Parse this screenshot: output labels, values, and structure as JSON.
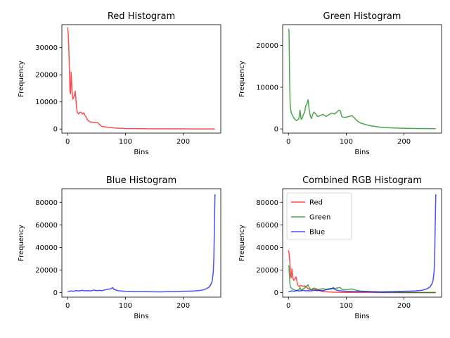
{
  "chart_data": [
    {
      "type": "line",
      "title": "Red Histogram",
      "xlabel": "Bins",
      "ylabel": "Frequency",
      "xlim": [
        -10,
        265
      ],
      "ylim": [
        -1500,
        38500
      ],
      "xticks": [
        0,
        100,
        200
      ],
      "yticks": [
        0,
        10000,
        20000,
        30000
      ],
      "xtick_labels": [
        "0",
        "100",
        "200"
      ],
      "ytick_labels": [
        "0",
        "10000",
        "20000",
        "30000"
      ],
      "grid": false,
      "series": [
        {
          "color": "#ff0000",
          "x": [
            0,
            1,
            2,
            3,
            4,
            5,
            6,
            7,
            8,
            9,
            10,
            11,
            12,
            13,
            14,
            15,
            16,
            17,
            18,
            19,
            20,
            22,
            24,
            26,
            28,
            30,
            32,
            34,
            36,
            38,
            40,
            44,
            48,
            52,
            56,
            58,
            60,
            65,
            70,
            80,
            90,
            100,
            120,
            140,
            160,
            180,
            200,
            220,
            240,
            255
          ],
          "y": [
            37500,
            35000,
            30000,
            22000,
            14000,
            13000,
            21000,
            17000,
            12500,
            11000,
            11500,
            12000,
            12500,
            14000,
            12000,
            9000,
            7000,
            6000,
            6000,
            5500,
            6000,
            6200,
            6000,
            5500,
            6000,
            5000,
            4500,
            3500,
            3000,
            2800,
            2600,
            2500,
            2400,
            2300,
            1500,
            1200,
            900,
            800,
            600,
            400,
            300,
            200,
            150,
            100,
            80,
            60,
            50,
            40,
            40,
            30
          ]
        }
      ]
    },
    {
      "type": "line",
      "title": "Green Histogram",
      "xlabel": "Bins",
      "ylabel": "Frequency",
      "xlim": [
        -10,
        265
      ],
      "ylim": [
        -1000,
        25000
      ],
      "xticks": [
        0,
        100,
        200
      ],
      "yticks": [
        0,
        10000,
        20000
      ],
      "xtick_labels": [
        "0",
        "100",
        "200"
      ],
      "ytick_labels": [
        "0",
        "10000",
        "20000"
      ],
      "grid": false,
      "series": [
        {
          "color": "#008000",
          "x": [
            0,
            1,
            2,
            3,
            4,
            5,
            6,
            8,
            10,
            12,
            14,
            16,
            18,
            20,
            22,
            24,
            26,
            28,
            30,
            32,
            34,
            36,
            38,
            40,
            42,
            44,
            46,
            48,
            50,
            55,
            60,
            65,
            70,
            75,
            80,
            85,
            88,
            90,
            92,
            95,
            100,
            105,
            110,
            115,
            120,
            125,
            130,
            140,
            150,
            160,
            180,
            200,
            220,
            240,
            255
          ],
          "y": [
            24000,
            23500,
            12000,
            6000,
            4500,
            3800,
            3500,
            3000,
            2500,
            2200,
            2000,
            2200,
            2400,
            4500,
            2300,
            2600,
            3500,
            4000,
            5500,
            6000,
            7000,
            4500,
            3000,
            2500,
            3500,
            4000,
            3800,
            3500,
            3000,
            3200,
            3500,
            3000,
            3400,
            3800,
            3600,
            4200,
            4500,
            4300,
            3000,
            2800,
            2800,
            3000,
            3200,
            2500,
            1800,
            1400,
            1200,
            800,
            600,
            400,
            250,
            150,
            100,
            80,
            60
          ]
        }
      ]
    },
    {
      "type": "line",
      "title": "Blue Histogram",
      "xlabel": "Bins",
      "ylabel": "Frequency",
      "xlim": [
        -10,
        265
      ],
      "ylim": [
        -4000,
        92000
      ],
      "xticks": [
        0,
        100,
        200
      ],
      "yticks": [
        0,
        20000,
        40000,
        60000,
        80000
      ],
      "xtick_labels": [
        "0",
        "100",
        "200"
      ],
      "ytick_labels": [
        "0",
        "20000",
        "40000",
        "60000",
        "80000"
      ],
      "grid": false,
      "series": [
        {
          "color": "#0000ff",
          "x": [
            0,
            5,
            10,
            15,
            20,
            25,
            30,
            35,
            40,
            45,
            50,
            55,
            60,
            65,
            70,
            75,
            78,
            80,
            85,
            90,
            100,
            120,
            140,
            160,
            180,
            200,
            210,
            220,
            230,
            235,
            240,
            245,
            248,
            250,
            252,
            253,
            254,
            255
          ],
          "y": [
            800,
            1500,
            1200,
            1800,
            1500,
            2000,
            1600,
            1800,
            1500,
            2200,
            1800,
            2000,
            1800,
            2500,
            3000,
            3500,
            4500,
            3000,
            2000,
            1500,
            1200,
            1000,
            800,
            700,
            900,
            1200,
            1300,
            1500,
            2000,
            2500,
            3500,
            5000,
            7500,
            10000,
            18000,
            30000,
            60000,
            87000
          ]
        }
      ]
    },
    {
      "type": "line",
      "title": "Combined RGB Histogram",
      "xlabel": "Bins",
      "ylabel": "Frequency",
      "xlim": [
        -10,
        265
      ],
      "ylim": [
        -4000,
        92000
      ],
      "xticks": [
        0,
        100,
        200
      ],
      "yticks": [
        0,
        20000,
        40000,
        60000,
        80000
      ],
      "xtick_labels": [
        "0",
        "100",
        "200"
      ],
      "ytick_labels": [
        "0",
        "20000",
        "40000",
        "60000",
        "80000"
      ],
      "grid": false,
      "legend": "upper-left",
      "series": [
        {
          "name": "Red",
          "color": "#ff0000",
          "x": [
            0,
            1,
            2,
            3,
            4,
            5,
            6,
            7,
            8,
            9,
            10,
            11,
            12,
            13,
            14,
            15,
            16,
            17,
            18,
            19,
            20,
            22,
            24,
            26,
            28,
            30,
            32,
            34,
            36,
            38,
            40,
            44,
            48,
            52,
            56,
            58,
            60,
            65,
            70,
            80,
            90,
            100,
            120,
            140,
            160,
            180,
            200,
            220,
            240,
            255
          ],
          "y": [
            37500,
            35000,
            30000,
            22000,
            14000,
            13000,
            21000,
            17000,
            12500,
            11000,
            11500,
            12000,
            12500,
            14000,
            12000,
            9000,
            7000,
            6000,
            6000,
            5500,
            6000,
            6200,
            6000,
            5500,
            6000,
            5000,
            4500,
            3500,
            3000,
            2800,
            2600,
            2500,
            2400,
            2300,
            1500,
            1200,
            900,
            800,
            600,
            400,
            300,
            200,
            150,
            100,
            80,
            60,
            50,
            40,
            40,
            30
          ]
        },
        {
          "name": "Green",
          "color": "#008000",
          "x": [
            0,
            1,
            2,
            3,
            4,
            5,
            6,
            8,
            10,
            12,
            14,
            16,
            18,
            20,
            22,
            24,
            26,
            28,
            30,
            32,
            34,
            36,
            38,
            40,
            42,
            44,
            46,
            48,
            50,
            55,
            60,
            65,
            70,
            75,
            80,
            85,
            88,
            90,
            92,
            95,
            100,
            105,
            110,
            115,
            120,
            125,
            130,
            140,
            150,
            160,
            180,
            200,
            220,
            240,
            255
          ],
          "y": [
            24000,
            23500,
            12000,
            6000,
            4500,
            3800,
            3500,
            3000,
            2500,
            2200,
            2000,
            2200,
            2400,
            4500,
            2300,
            2600,
            3500,
            4000,
            5500,
            6000,
            7000,
            4500,
            3000,
            2500,
            3500,
            4000,
            3800,
            3500,
            3000,
            3200,
            3500,
            3000,
            3400,
            3800,
            3600,
            4200,
            4500,
            4300,
            3000,
            2800,
            2800,
            3000,
            3200,
            2500,
            1800,
            1400,
            1200,
            800,
            600,
            400,
            250,
            150,
            100,
            80,
            60
          ]
        },
        {
          "name": "Blue",
          "color": "#0000ff",
          "x": [
            0,
            5,
            10,
            15,
            20,
            25,
            30,
            35,
            40,
            45,
            50,
            55,
            60,
            65,
            70,
            75,
            78,
            80,
            85,
            90,
            100,
            120,
            140,
            160,
            180,
            200,
            210,
            220,
            230,
            235,
            240,
            245,
            248,
            250,
            252,
            253,
            254,
            255
          ],
          "y": [
            800,
            1500,
            1200,
            1800,
            1500,
            2000,
            1600,
            1800,
            1500,
            2200,
            1800,
            2000,
            1800,
            2500,
            3000,
            3500,
            4500,
            3000,
            2000,
            1500,
            1200,
            1000,
            800,
            700,
            900,
            1200,
            1300,
            1500,
            2000,
            2500,
            3500,
            5000,
            7500,
            10000,
            18000,
            30000,
            60000,
            87000
          ]
        }
      ]
    }
  ]
}
